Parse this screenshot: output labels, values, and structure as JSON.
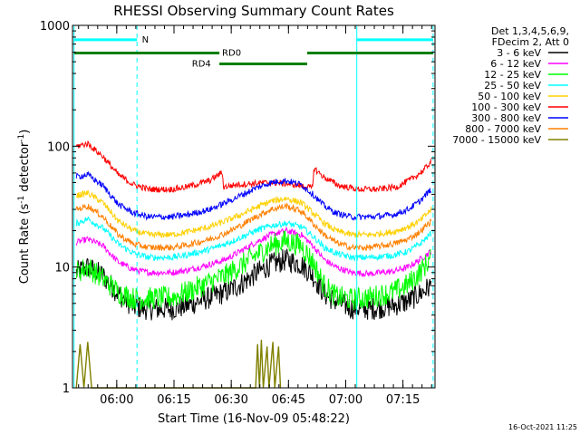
{
  "chart_data": {
    "type": "line",
    "title": "RHESSI Observing Summary Count Rates",
    "xlabel": "Start Time (16-Nov-09 05:48:22)",
    "ylabel_main": "Count Rate (s",
    "ylabel_sup1": "-1",
    "ylabel_mid": " detector",
    "ylabel_sup2": "-1",
    "ylabel_end": ")",
    "y_scale": "log",
    "ylim": [
      1,
      1000
    ],
    "x_range_minutes": [
      0,
      95
    ],
    "x_ticks": [
      {
        "label": "06:00",
        "t": 11.6
      },
      {
        "label": "06:15",
        "t": 26.6
      },
      {
        "label": "06:30",
        "t": 41.6
      },
      {
        "label": "06:45",
        "t": 56.6
      },
      {
        "label": "07:00",
        "t": 71.6
      },
      {
        "label": "07:15",
        "t": 86.6
      }
    ],
    "y_ticks": [
      {
        "label": "1",
        "v": 1
      },
      {
        "label": "10",
        "v": 10
      },
      {
        "label": "100",
        "v": 100
      },
      {
        "label": "1000",
        "v": 1000
      }
    ],
    "legend": {
      "position": "right",
      "header": [
        "Det 1,3,4,5,6,9,",
        "FDecim 2, Att 0"
      ],
      "entries": [
        {
          "label": "3 - 6 keV",
          "color": "#000000"
        },
        {
          "label": "6 - 12 keV",
          "color": "#ff00ff"
        },
        {
          "label": "12 - 25 keV",
          "color": "#00ff00"
        },
        {
          "label": "25 - 50 keV",
          "color": "#00ffff"
        },
        {
          "label": "50 - 100 keV",
          "color": "#ffd000"
        },
        {
          "label": "100 - 300 keV",
          "color": "#ff0000"
        },
        {
          "label": "300 - 800 keV",
          "color": "#0000ff"
        },
        {
          "label": "800 - 7000 keV",
          "color": "#ff8000"
        },
        {
          "label": "7000 - 15000 keV",
          "color": "#808000"
        }
      ]
    },
    "series": [
      {
        "name": "3 - 6 keV",
        "color": "#000000",
        "points": [
          [
            1,
            9
          ],
          [
            4,
            10
          ],
          [
            8,
            8.5
          ],
          [
            12,
            6
          ],
          [
            16,
            4.7
          ],
          [
            20,
            4.5
          ],
          [
            26,
            4.5
          ],
          [
            30,
            4.8
          ],
          [
            36,
            5.6
          ],
          [
            40,
            6.2
          ],
          [
            44,
            7.2
          ],
          [
            48,
            8.8
          ],
          [
            52,
            10.5
          ],
          [
            56,
            11.5
          ],
          [
            60,
            10.5
          ],
          [
            63,
            8.5
          ],
          [
            66,
            6
          ],
          [
            69,
            5.2
          ],
          [
            73,
            4.6
          ],
          [
            78,
            4.5
          ],
          [
            84,
            4.8
          ],
          [
            88,
            5.2
          ],
          [
            91,
            6
          ],
          [
            94,
            7
          ]
        ]
      },
      {
        "name": "6 - 12 keV",
        "color": "#ff00ff",
        "points": [
          [
            1,
            16
          ],
          [
            4,
            17
          ],
          [
            8,
            15
          ],
          [
            12,
            11
          ],
          [
            16,
            9.5
          ],
          [
            20,
            9
          ],
          [
            26,
            9
          ],
          [
            30,
            9.4
          ],
          [
            36,
            10.5
          ],
          [
            40,
            11.5
          ],
          [
            44,
            13.5
          ],
          [
            48,
            16
          ],
          [
            52,
            18.5
          ],
          [
            56,
            20
          ],
          [
            60,
            18.5
          ],
          [
            63,
            15
          ],
          [
            66,
            11.5
          ],
          [
            69,
            10
          ],
          [
            73,
            9
          ],
          [
            78,
            8.8
          ],
          [
            84,
            9.2
          ],
          [
            88,
            10
          ],
          [
            91,
            11.5
          ],
          [
            94,
            13.5
          ]
        ]
      },
      {
        "name": "12 - 25 keV",
        "color": "#00ff00",
        "points": [
          [
            1,
            9
          ],
          [
            4,
            10
          ],
          [
            8,
            8
          ],
          [
            12,
            6.2
          ],
          [
            16,
            5.5
          ],
          [
            20,
            5.5
          ],
          [
            26,
            5.6
          ],
          [
            30,
            6.2
          ],
          [
            36,
            7.5
          ],
          [
            40,
            8.5
          ],
          [
            44,
            10.2
          ],
          [
            48,
            12.5
          ],
          [
            52,
            15
          ],
          [
            56,
            16.5
          ],
          [
            60,
            15
          ],
          [
            63,
            11
          ],
          [
            66,
            7
          ],
          [
            69,
            5.7
          ],
          [
            73,
            5.4
          ],
          [
            78,
            5.6
          ],
          [
            84,
            6.2
          ],
          [
            88,
            7.2
          ],
          [
            91,
            9
          ],
          [
            94,
            12
          ]
        ]
      },
      {
        "name": "25 - 50 keV",
        "color": "#00ffff",
        "points": [
          [
            1,
            23
          ],
          [
            4,
            25
          ],
          [
            8,
            21
          ],
          [
            12,
            15.5
          ],
          [
            16,
            13
          ],
          [
            20,
            12
          ],
          [
            26,
            12
          ],
          [
            30,
            12.6
          ],
          [
            36,
            14
          ],
          [
            40,
            15.5
          ],
          [
            44,
            17.5
          ],
          [
            48,
            20
          ],
          [
            52,
            22
          ],
          [
            56,
            23
          ],
          [
            60,
            21.5
          ],
          [
            63,
            18
          ],
          [
            66,
            14.5
          ],
          [
            69,
            13
          ],
          [
            73,
            12
          ],
          [
            78,
            12
          ],
          [
            84,
            12.5
          ],
          [
            88,
            13.5
          ],
          [
            91,
            15.5
          ],
          [
            94,
            19
          ]
        ]
      },
      {
        "name": "50 - 100 keV",
        "color": "#ffd000",
        "points": [
          [
            1,
            39
          ],
          [
            4,
            41
          ],
          [
            8,
            34
          ],
          [
            12,
            24
          ],
          [
            16,
            20
          ],
          [
            20,
            18.5
          ],
          [
            26,
            18.5
          ],
          [
            30,
            19.5
          ],
          [
            36,
            21.5
          ],
          [
            40,
            24
          ],
          [
            44,
            27
          ],
          [
            48,
            31
          ],
          [
            52,
            35
          ],
          [
            56,
            37
          ],
          [
            60,
            34
          ],
          [
            63,
            28
          ],
          [
            66,
            23
          ],
          [
            69,
            20
          ],
          [
            73,
            18.5
          ],
          [
            78,
            18.5
          ],
          [
            84,
            19.5
          ],
          [
            88,
            21.5
          ],
          [
            91,
            24
          ],
          [
            94,
            30
          ]
        ]
      },
      {
        "name": "100 - 300 keV",
        "color": "#ff0000",
        "points": [
          [
            1,
            100
          ],
          [
            4,
            105
          ],
          [
            8,
            82
          ],
          [
            12,
            58
          ],
          [
            16,
            48
          ],
          [
            20,
            44
          ],
          [
            26,
            44
          ],
          [
            30,
            46
          ],
          [
            36,
            52
          ],
          [
            39.3,
            61
          ],
          [
            39.5,
            46
          ],
          [
            43,
            48
          ],
          [
            47,
            49
          ],
          [
            52,
            50
          ],
          [
            56,
            49
          ],
          [
            60,
            47
          ],
          [
            63,
            45
          ],
          [
            63.2,
            66
          ],
          [
            66,
            55
          ],
          [
            70,
            47
          ],
          [
            75,
            44
          ],
          [
            80,
            44
          ],
          [
            85,
            46
          ],
          [
            89,
            54
          ],
          [
            92,
            63
          ],
          [
            94,
            75
          ]
        ]
      },
      {
        "name": "300 - 800 keV",
        "color": "#0000ff",
        "points": [
          [
            1,
            56
          ],
          [
            4,
            58
          ],
          [
            8,
            47
          ],
          [
            12,
            33
          ],
          [
            16,
            28
          ],
          [
            20,
            26
          ],
          [
            26,
            26
          ],
          [
            30,
            27
          ],
          [
            36,
            30
          ],
          [
            40,
            34
          ],
          [
            44,
            39
          ],
          [
            48,
            45
          ],
          [
            52,
            50
          ],
          [
            56,
            52
          ],
          [
            60,
            48
          ],
          [
            63,
            40
          ],
          [
            66,
            32
          ],
          [
            69,
            28
          ],
          [
            73,
            26
          ],
          [
            78,
            26
          ],
          [
            84,
            27
          ],
          [
            88,
            30
          ],
          [
            91,
            35
          ],
          [
            94,
            44
          ]
        ]
      },
      {
        "name": "800 - 7000 keV",
        "color": "#ff8000",
        "points": [
          [
            1,
            30
          ],
          [
            4,
            32
          ],
          [
            8,
            26
          ],
          [
            12,
            18.5
          ],
          [
            16,
            15.5
          ],
          [
            20,
            14.5
          ],
          [
            26,
            14.5
          ],
          [
            30,
            15.2
          ],
          [
            36,
            17
          ],
          [
            40,
            19
          ],
          [
            44,
            22
          ],
          [
            48,
            26
          ],
          [
            52,
            30
          ],
          [
            56,
            32
          ],
          [
            60,
            29
          ],
          [
            63,
            23
          ],
          [
            66,
            18.5
          ],
          [
            69,
            16
          ],
          [
            73,
            14.5
          ],
          [
            78,
            14.5
          ],
          [
            84,
            15.5
          ],
          [
            88,
            17
          ],
          [
            91,
            19.5
          ],
          [
            94,
            24
          ]
        ]
      },
      {
        "name": "7000 - 15000 keV",
        "color": "#808000",
        "points": [
          [
            1,
            1
          ],
          [
            2,
            2.3
          ],
          [
            3,
            1
          ],
          [
            4,
            2.4
          ],
          [
            5,
            1
          ],
          [
            48,
            1
          ],
          [
            48.5,
            2.3
          ],
          [
            49,
            1
          ],
          [
            49.5,
            2.5
          ],
          [
            50,
            1
          ],
          [
            51,
            2.2
          ],
          [
            51.5,
            1
          ],
          [
            52.5,
            2.4
          ],
          [
            53,
            1
          ],
          [
            54,
            2.2
          ],
          [
            54.5,
            1
          ]
        ]
      }
    ],
    "vertical_lines": [
      {
        "t": 0.4,
        "style": "solid"
      },
      {
        "t": 16.9,
        "style": "dashed"
      },
      {
        "t": 74.5,
        "style": "solid"
      },
      {
        "t": 94.5,
        "style": "dashed"
      }
    ],
    "state_bars": [
      {
        "label": "N",
        "color": "#00ffff",
        "segments": [
          [
            0.4,
            16.9
          ],
          [
            74.5,
            94.5
          ]
        ],
        "y_value": 760,
        "label_at": 18.2
      },
      {
        "label": "RD0",
        "color": "#007f00",
        "segments": [
          [
            0.4,
            38.5
          ],
          [
            61.5,
            94.5
          ]
        ],
        "y_value": 590,
        "label_at": 39.2
      },
      {
        "label": "RD4",
        "color": "#007f00",
        "segments": [
          [
            38.5,
            61.5
          ]
        ],
        "y_value": 480,
        "label_at": 31.3
      }
    ]
  },
  "footer_timestamp": "16-Oct-2021 11:25"
}
